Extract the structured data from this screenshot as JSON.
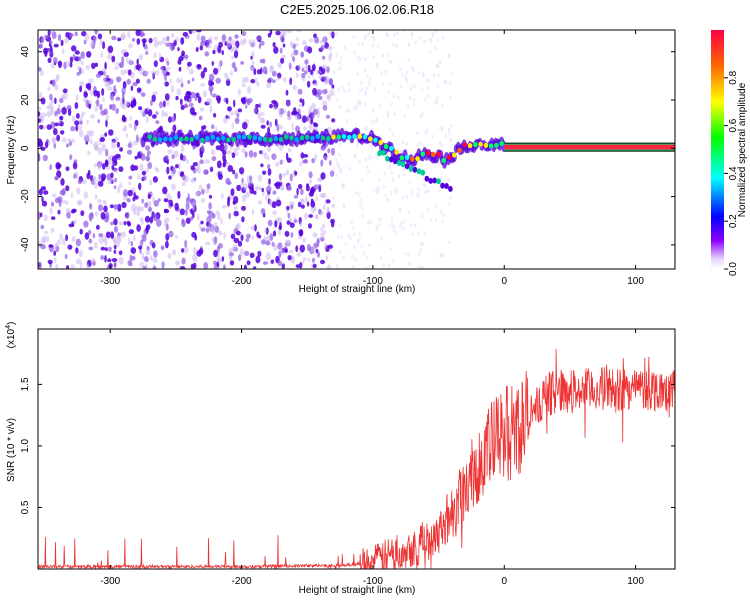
{
  "title": "C2E5.2025.106.02.06.R18",
  "colors": {
    "snr_line": "#ee3333",
    "axis": "#000000",
    "spectrum_main": "#5500dd",
    "spectrum_faint": "#c9b2f0"
  },
  "chart_data": [
    {
      "type": "heatmap",
      "name": "spectrogram",
      "xlabel": "Height of straight line (km)",
      "ylabel": "Frequency (Hz)",
      "xlim": [
        -355,
        130
      ],
      "ylim": [
        -50,
        49
      ],
      "x_ticks": [
        -300,
        -200,
        -100,
        0,
        100
      ],
      "y_ticks": [
        -40,
        -20,
        0,
        20,
        40
      ],
      "colorbar": {
        "label": "Normalized spectral amplitude",
        "range": [
          0,
          1
        ],
        "ticks": [
          "0.0",
          "0.2",
          "0.4",
          "0.6",
          "0.8"
        ],
        "tick_values": [
          0.0,
          0.2,
          0.4,
          0.6,
          0.8
        ],
        "colormap": [
          "#ffffff",
          "#7a00ff",
          "#0000ff",
          "#00ffff",
          "#00ff00",
          "#ffff00",
          "#ff6600",
          "#ff0044"
        ]
      },
      "carrier_track": {
        "x": [
          -275,
          -250,
          -200,
          -150,
          -125,
          -110,
          -100,
          -90,
          -80,
          -75,
          -70,
          -60,
          -50,
          -45,
          -40,
          -35,
          -30,
          -20,
          -10,
          0,
          20,
          50,
          100,
          130
        ],
        "y": [
          4,
          4,
          4,
          4,
          5,
          5,
          4,
          1,
          -3,
          -4,
          -5,
          -2,
          -3,
          -5,
          -3,
          -1,
          1,
          2,
          1,
          2,
          0.5,
          0.5,
          0.5,
          0.5
        ]
      },
      "noise_region": {
        "x_start": -355,
        "x_end": -130
      }
    },
    {
      "type": "line",
      "name": "snr",
      "xlabel": "Height of straight line (km)",
      "ylabel": "SNR (10 * v/v)",
      "multiplier": "(x10",
      "multiplier_exp": "4",
      "xlim": [
        -355,
        130
      ],
      "ylim": [
        0,
        1.95
      ],
      "x_ticks": [
        -300,
        -200,
        -100,
        0,
        100
      ],
      "y_ticks": [
        0.5,
        1.0,
        1.5
      ],
      "y_tick_labels": [
        "0.5",
        "1.0",
        "1.5"
      ],
      "envelope": {
        "x": [
          -355,
          -200,
          -120,
          -100,
          -90,
          -80,
          -70,
          -60,
          -50,
          -40,
          -30,
          -20,
          -10,
          0,
          10,
          20,
          30,
          40,
          60,
          80,
          100,
          130
        ],
        "y": [
          0.02,
          0.02,
          0.03,
          0.06,
          0.1,
          0.15,
          0.18,
          0.22,
          0.32,
          0.45,
          0.65,
          0.85,
          1.0,
          1.1,
          1.15,
          1.25,
          1.4,
          1.45,
          1.45,
          1.47,
          1.47,
          1.45
        ]
      }
    }
  ]
}
